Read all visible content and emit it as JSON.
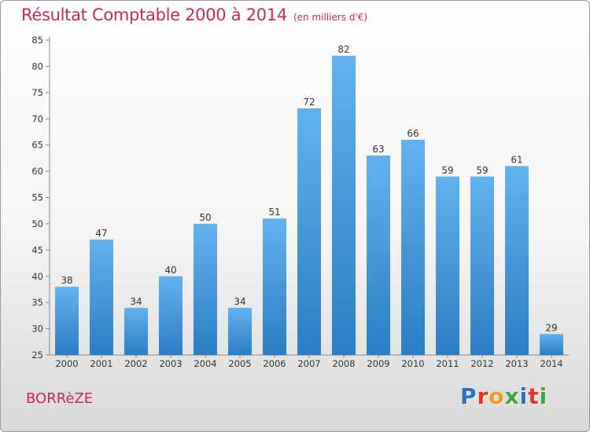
{
  "header": {
    "title": "Résultat Comptable 2000 à 2014",
    "subtitle": "(en milliers d'€)"
  },
  "footer": {
    "commune": "BORRèZE",
    "logo_letters": [
      "P",
      "r",
      "o",
      "x",
      "i",
      "t",
      "i"
    ],
    "logo_colors": [
      "#2f6fc0",
      "#e2332a",
      "#f29a1c",
      "#3aa83a",
      "#2f6fc0",
      "#e2332a",
      "#3aa83a"
    ]
  },
  "chart_data": {
    "type": "bar",
    "title": "Résultat Comptable 2000 à 2014",
    "subtitle": "(en milliers d'€)",
    "categories": [
      "2000",
      "2001",
      "2002",
      "2003",
      "2004",
      "2005",
      "2006",
      "2007",
      "2008",
      "2009",
      "2010",
      "2011",
      "2012",
      "2013",
      "2014"
    ],
    "values": [
      38,
      47,
      34,
      40,
      50,
      34,
      51,
      72,
      82,
      63,
      66,
      59,
      59,
      61,
      29
    ],
    "labels": [
      "38",
      "47",
      "34",
      "40",
      "50",
      "34",
      "51",
      "72",
      "82",
      "63",
      "66",
      "59",
      "59",
      "61",
      "29"
    ],
    "ylim": [
      25,
      85
    ],
    "yticks": [
      "25",
      "30",
      "35",
      "40",
      "45",
      "50",
      "55",
      "60",
      "65",
      "70",
      "75",
      "80",
      "85"
    ],
    "ytick_values": [
      25,
      30,
      35,
      40,
      45,
      50,
      55,
      60,
      65,
      70,
      75,
      80,
      85
    ],
    "grid": false,
    "bar_color_top": "#62b2ee",
    "bar_color_bottom": "#2b7ec4"
  }
}
